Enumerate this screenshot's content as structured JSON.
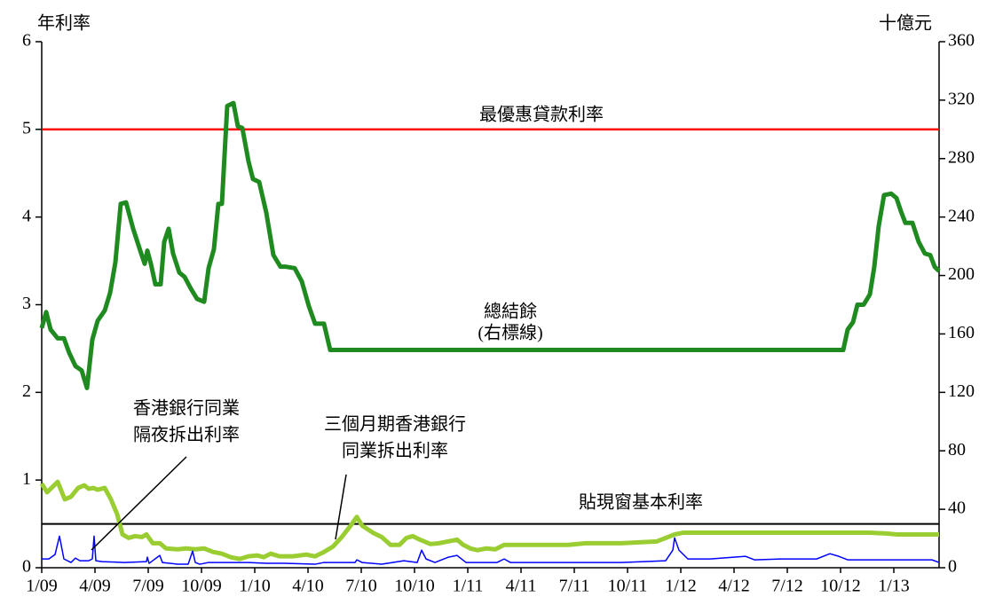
{
  "chart_data": {
    "type": "line",
    "y_label": "年利率",
    "y2_label": "十億元",
    "annotations": [
      "最優惠貸款利率",
      "總結餘",
      "(右標線)",
      "香港銀行同業",
      "隔夜拆出利率",
      "三個月期香港銀行",
      "同業拆出利率",
      "貼現窗基本利率"
    ],
    "xlim": [
      0,
      50.55
    ],
    "xticks": [
      {
        "value": 0,
        "label": "1/09"
      },
      {
        "value": 3,
        "label": "4/09"
      },
      {
        "value": 6,
        "label": "7/09"
      },
      {
        "value": 9,
        "label": "10/09"
      },
      {
        "value": 12,
        "label": "1/10"
      },
      {
        "value": 15,
        "label": "4/10"
      },
      {
        "value": 18,
        "label": "7/10"
      },
      {
        "value": 21,
        "label": "10/10"
      },
      {
        "value": 24,
        "label": "1/11"
      },
      {
        "value": 27,
        "label": "4/11"
      },
      {
        "value": 30,
        "label": "7/11"
      },
      {
        "value": 33,
        "label": "10/11"
      },
      {
        "value": 36,
        "label": "1/12"
      },
      {
        "value": 39,
        "label": "4/12"
      },
      {
        "value": 42,
        "label": "7/12"
      },
      {
        "value": 45,
        "label": "10/12"
      },
      {
        "value": 48,
        "label": "1/13"
      }
    ],
    "ylim": [
      0,
      6
    ],
    "yticks": [
      0,
      1,
      2,
      3,
      4,
      5,
      6
    ],
    "y2lim": [
      0,
      360
    ],
    "y2ticks": [
      0,
      40,
      80,
      120,
      160,
      200,
      240,
      280,
      320,
      360
    ],
    "series": [
      {
        "color": "#ff0000",
        "width": 2.5,
        "x": [
          0,
          50.55
        ],
        "values": [
          5,
          5
        ]
      },
      {
        "color": "#000000",
        "width": 2,
        "x": [
          0,
          50.55
        ],
        "values": [
          0.5,
          0.5
        ]
      },
      {
        "color": "#1f8a1f",
        "width": 5,
        "axis": "y2",
        "x": [
          0,
          0.25,
          0.5,
          0.9,
          1.25,
          1.55,
          1.9,
          2.25,
          2.55,
          2.85,
          3.15,
          3.55,
          3.85,
          4.15,
          4.45,
          4.75,
          5.15,
          5.55,
          5.8,
          5.95,
          6.15,
          6.4,
          6.7,
          6.9,
          7.15,
          7.4,
          7.75,
          8.05,
          8.4,
          8.75,
          9.15,
          9.4,
          9.7,
          9.95,
          10.15,
          10.45,
          10.8,
          11.05,
          11.3,
          11.65,
          11.9,
          12.25,
          12.65,
          13.05,
          13.45,
          13.75,
          14.25,
          14.65,
          15.05,
          15.4,
          15.9,
          16.25,
          45.15,
          45.4,
          45.7,
          45.95,
          46.3,
          46.65,
          46.9,
          47.15,
          47.45,
          47.85,
          48.15,
          48.4,
          48.65,
          49.05,
          49.4,
          49.75,
          50.05,
          50.3,
          50.55
        ],
        "values": [
          164,
          175,
          163,
          157,
          157,
          147,
          138,
          135,
          123,
          156,
          169,
          176,
          188,
          209,
          249,
          250,
          232,
          217,
          208,
          217,
          208,
          194,
          194,
          223,
          232,
          215,
          202,
          199,
          191,
          184,
          182,
          205,
          218,
          249,
          249,
          316,
          318,
          302,
          301,
          278,
          266,
          264,
          243,
          214,
          206,
          206,
          205,
          196,
          179,
          167,
          167,
          149,
          149,
          163,
          168,
          180,
          180,
          187,
          206,
          234,
          255,
          256,
          253,
          244,
          236,
          236,
          223,
          215,
          214,
          206,
          203
        ]
      },
      {
        "color": "#9acd32",
        "width": 5,
        "x": [
          0,
          0.3,
          0.65,
          0.9,
          1.3,
          1.65,
          2.05,
          2.4,
          2.65,
          2.9,
          3.15,
          3.55,
          3.9,
          4.25,
          4.55,
          4.9,
          5.25,
          5.65,
          5.9,
          6.25,
          6.65,
          7,
          7.65,
          8.15,
          8.65,
          9.15,
          9.65,
          10.15,
          10.65,
          11.15,
          11.65,
          12.15,
          12.5,
          12.9,
          13.4,
          14.15,
          14.9,
          15.4,
          15.9,
          16.4,
          16.9,
          17.4,
          17.75,
          18.05,
          18.65,
          19.15,
          19.65,
          20.15,
          20.55,
          20.9,
          21.3,
          21.9,
          22.4,
          22.9,
          23.4,
          23.75,
          24.15,
          24.55,
          25.05,
          25.55,
          26.05,
          26.65,
          27.65,
          29.65,
          30.65,
          32.65,
          33.65,
          34.65,
          35.15,
          35.65,
          36.15,
          42.65,
          46.65,
          47.65,
          48.15,
          50.55
        ],
        "values": [
          0.96,
          0.86,
          0.93,
          0.98,
          0.78,
          0.81,
          0.91,
          0.94,
          0.9,
          0.91,
          0.89,
          0.91,
          0.78,
          0.61,
          0.38,
          0.34,
          0.36,
          0.35,
          0.38,
          0.28,
          0.28,
          0.22,
          0.21,
          0.22,
          0.21,
          0.22,
          0.18,
          0.16,
          0.12,
          0.1,
          0.13,
          0.14,
          0.12,
          0.16,
          0.13,
          0.13,
          0.15,
          0.13,
          0.18,
          0.24,
          0.35,
          0.48,
          0.58,
          0.48,
          0.4,
          0.35,
          0.26,
          0.26,
          0.34,
          0.36,
          0.32,
          0.27,
          0.28,
          0.3,
          0.32,
          0.26,
          0.22,
          0.2,
          0.22,
          0.21,
          0.26,
          0.26,
          0.26,
          0.26,
          0.28,
          0.28,
          0.29,
          0.3,
          0.34,
          0.38,
          0.4,
          0.4,
          0.4,
          0.39,
          0.38,
          0.38
        ]
      },
      {
        "color": "#0000ff",
        "width": 1.5,
        "x": [
          0,
          0.4,
          0.75,
          1,
          1.25,
          1.65,
          1.9,
          2.15,
          2.65,
          2.85,
          2.95,
          3.05,
          3.4,
          4.65,
          5.9,
          5.95,
          6.05,
          6.65,
          6.8,
          7.65,
          8.25,
          8.5,
          8.65,
          8.9,
          9.4,
          10.65,
          11.65,
          12.65,
          13.65,
          15.4,
          15.9,
          17.65,
          17.75,
          18.05,
          19.15,
          20.4,
          21.15,
          21.4,
          21.65,
          22.15,
          22.9,
          23.4,
          23.9,
          25.65,
          26.05,
          26.4,
          32.65,
          35.15,
          35.55,
          35.65,
          35.9,
          36.4,
          37.65,
          39.65,
          40.15,
          41.65,
          43.65,
          44.4,
          44.9,
          45.4,
          47.65,
          50.15,
          50.55
        ],
        "values": [
          0.1,
          0.1,
          0.15,
          0.36,
          0.1,
          0.06,
          0.11,
          0.08,
          0.08,
          0.1,
          0.36,
          0.08,
          0.07,
          0.06,
          0.07,
          0.12,
          0.05,
          0.14,
          0.06,
          0.04,
          0.04,
          0.19,
          0.06,
          0.04,
          0.06,
          0.06,
          0.06,
          0.05,
          0.05,
          0.04,
          0.06,
          0.06,
          0.09,
          0.06,
          0.04,
          0.08,
          0.06,
          0.2,
          0.1,
          0.06,
          0.12,
          0.14,
          0.06,
          0.06,
          0.1,
          0.06,
          0.06,
          0.08,
          0.2,
          0.34,
          0.2,
          0.1,
          0.1,
          0.13,
          0.09,
          0.1,
          0.1,
          0.16,
          0.13,
          0.09,
          0.09,
          0.09,
          0.06
        ]
      }
    ]
  }
}
